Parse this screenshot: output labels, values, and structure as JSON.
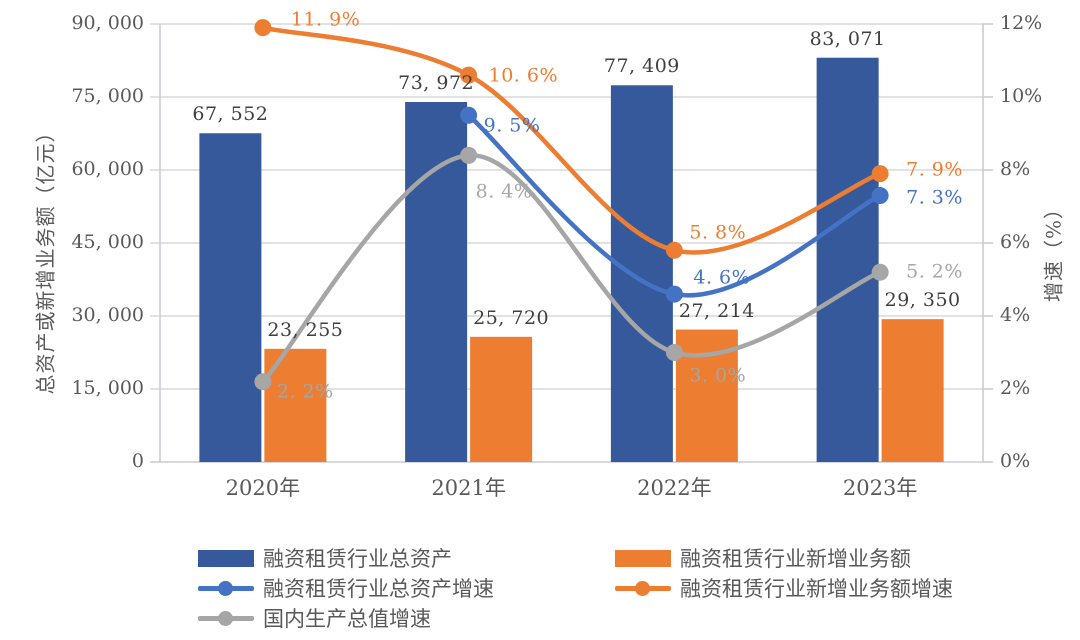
{
  "chart_data": {
    "type": "bar+line combo",
    "categories": [
      "2020年",
      "2021年",
      "2022年",
      "2023年"
    ],
    "bar_series": [
      {
        "name": "融资租赁行业总资产",
        "color": "#35599B",
        "values": [
          67552,
          73972,
          77409,
          83071
        ],
        "labels": [
          "67, 552",
          "73, 972",
          "77, 409",
          "83, 071"
        ]
      },
      {
        "name": "融资租赁行业新增业务额",
        "color": "#ED7D31",
        "values": [
          23255,
          25720,
          27214,
          29350
        ],
        "labels": [
          "23, 255",
          "25, 720",
          "27, 214",
          "29, 350"
        ]
      }
    ],
    "line_series": [
      {
        "name": "融资租赁行业总资产增速",
        "color": "#4472C4",
        "axis": "right",
        "values": [
          null,
          9.5,
          4.6,
          7.3
        ],
        "labels": [
          "",
          "9. 5%",
          "4. 6%",
          "7. 3%"
        ]
      },
      {
        "name": "融资租赁行业新增业务额增速",
        "color": "#ED7D31",
        "axis": "right",
        "values": [
          11.9,
          10.6,
          5.8,
          7.9
        ],
        "labels": [
          "11. 9%",
          "10. 6%",
          "5. 8%",
          "7. 9%"
        ]
      },
      {
        "name": "国内生产总值增速",
        "color": "#A6A6A6",
        "axis": "right",
        "values": [
          2.2,
          8.4,
          3.0,
          5.2
        ],
        "labels": [
          "2. 2%",
          "8. 4%",
          "3. 0%",
          "5. 2%"
        ]
      }
    ],
    "left_axis": {
      "title": "总资产或新增业务额（亿元）",
      "min": 0,
      "max": 90000,
      "step": 15000,
      "tick_labels": [
        "0",
        "15, 000",
        "30, 000",
        "45, 000",
        "60, 000",
        "75, 000",
        "90, 000"
      ]
    },
    "right_axis": {
      "title": "增速（%）",
      "min": 0,
      "max": 12,
      "step": 2,
      "tick_labels": [
        "0%",
        "2%",
        "4%",
        "6%",
        "8%",
        "10%",
        "12%"
      ]
    },
    "grid": true,
    "legend_position": "bottom",
    "legend_columns": [
      [
        {
          "type": "bar",
          "label": "融资租赁行业总资产",
          "color": "#35599B"
        },
        {
          "type": "line",
          "label": "融资租赁行业总资产增速",
          "color": "#4472C4"
        },
        {
          "type": "line",
          "label": "国内生产总值增速",
          "color": "#A6A6A6"
        }
      ],
      [
        {
          "type": "bar",
          "label": "融资租赁行业新增业务额",
          "color": "#ED7D31"
        },
        {
          "type": "line",
          "label": "融资租赁行业新增业务额增速",
          "color": "#ED7D31"
        }
      ]
    ],
    "colors": {
      "gridline": "#D9D9D9",
      "axis_line": "#C9CCD4",
      "tick_text": "#595959",
      "bar_label_text": "#3F3F3F"
    }
  }
}
